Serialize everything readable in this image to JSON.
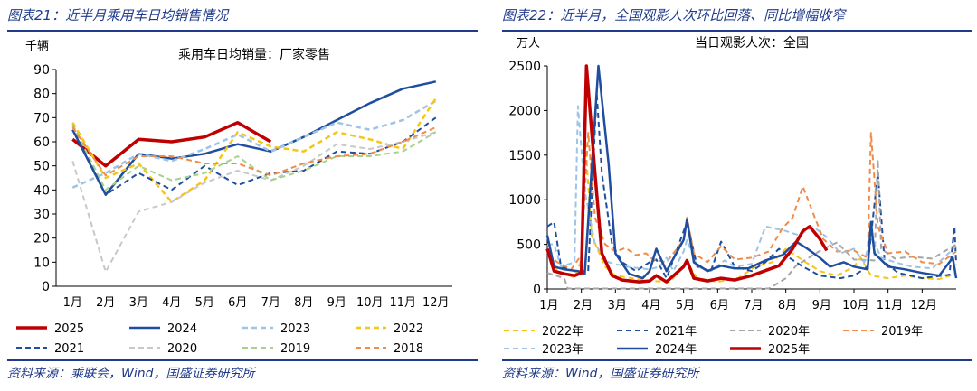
{
  "left": {
    "header": "图表21：近半月乘用车日均销售情况",
    "source": "资料来源：乘联会，Wind，国盛证券研究所",
    "chart_data": {
      "type": "line",
      "title": "乘用车日均销量：厂家零售",
      "unit_label": "千辆",
      "categories": [
        "1月",
        "2月",
        "3月",
        "4月",
        "5月",
        "6月",
        "7月",
        "8月",
        "9月",
        "10月",
        "11月",
        "12月"
      ],
      "ylim": [
        0,
        90
      ],
      "yticks": [
        0,
        10,
        20,
        30,
        40,
        50,
        60,
        70,
        80,
        90
      ],
      "grid": false,
      "legend_position": "bottom",
      "series": [
        {
          "name": "2025",
          "color": "#c00000",
          "dash": "solid",
          "width": 3.5,
          "values": [
            61,
            50,
            61,
            60,
            62,
            68,
            60,
            null,
            null,
            null,
            null,
            null
          ]
        },
        {
          "name": "2024",
          "color": "#1f4e9e",
          "dash": "solid",
          "width": 2.5,
          "values": [
            65,
            38,
            55,
            53,
            55,
            59,
            56,
            62,
            69,
            76,
            82,
            85
          ]
        },
        {
          "name": "2023",
          "color": "#9dc3e6",
          "dash": "dashed",
          "width": 2.5,
          "values": [
            41,
            47,
            55,
            52,
            57,
            63,
            56,
            62,
            68,
            65,
            69,
            77
          ]
        },
        {
          "name": "2022",
          "color": "#f5c518",
          "dash": "dashed",
          "width": 2.5,
          "values": [
            68,
            45,
            51,
            35,
            44,
            64,
            58,
            56,
            64,
            61,
            57,
            78
          ]
        },
        {
          "name": "2021",
          "color": "#1f4e9e",
          "dash": "dashed",
          "width": 2,
          "values": [
            67,
            38,
            47,
            40,
            50,
            42,
            47,
            48,
            56,
            55,
            60,
            70
          ]
        },
        {
          "name": "2020",
          "color": "#c8c8c8",
          "dash": "dashed",
          "width": 2,
          "values": [
            52,
            6,
            31,
            35,
            43,
            48,
            44,
            50,
            59,
            57,
            60,
            64
          ]
        },
        {
          "name": "2019",
          "color": "#a9d18e",
          "dash": "dashed",
          "width": 2,
          "values": [
            67,
            40,
            50,
            44,
            47,
            54,
            44,
            48,
            54,
            54,
            56,
            64
          ]
        },
        {
          "name": "2018",
          "color": "#f08c4a",
          "dash": "dashed",
          "width": 2,
          "values": [
            66,
            46,
            54,
            54,
            51,
            51,
            46,
            51,
            54,
            55,
            60,
            66
          ]
        }
      ]
    }
  },
  "right": {
    "header": "图表22：近半月，全国观影人次环比回落、同比增幅收窄",
    "source": "资料来源：Wind，国盛证券研究所",
    "chart_data": {
      "type": "line",
      "title": "当日观影人次：全国",
      "unit_label": "万人",
      "categories": [
        "1月",
        "2月",
        "3月",
        "4月",
        "5月",
        "6月",
        "7月",
        "8月",
        "9月",
        "10月",
        "11月",
        "12月"
      ],
      "ylim": [
        0,
        2500
      ],
      "yticks": [
        0,
        500,
        1000,
        1500,
        2000,
        2500
      ],
      "grid": false,
      "legend_position": "bottom",
      "series": [
        {
          "name": "2022年",
          "color": "#f5c518",
          "dash": "dashed",
          "width": 2,
          "points": [
            [
              0,
              450
            ],
            [
              0.3,
              200
            ],
            [
              0.8,
              130
            ],
            [
              1.0,
              320
            ],
            [
              1.1,
              1750
            ],
            [
              1.3,
              600
            ],
            [
              1.7,
              250
            ],
            [
              2.0,
              150
            ],
            [
              3.0,
              90
            ],
            [
              3.6,
              80
            ],
            [
              4.1,
              300
            ],
            [
              4.4,
              120
            ],
            [
              5.0,
              80
            ],
            [
              5.6,
              120
            ],
            [
              6.1,
              250
            ],
            [
              6.6,
              300
            ],
            [
              7.0,
              450
            ],
            [
              7.5,
              320
            ],
            [
              8.0,
              200
            ],
            [
              8.5,
              150
            ],
            [
              9.0,
              250
            ],
            [
              9.2,
              350
            ],
            [
              9.5,
              150
            ],
            [
              10.0,
              120
            ],
            [
              10.5,
              150
            ],
            [
              11.0,
              120
            ],
            [
              11.5,
              110
            ],
            [
              12.0,
              170
            ]
          ]
        },
        {
          "name": "2021年",
          "color": "#1f4e9e",
          "dash": "dashed",
          "width": 2,
          "points": [
            [
              0,
              700
            ],
            [
              0.2,
              750
            ],
            [
              0.4,
              250
            ],
            [
              0.8,
              200
            ],
            [
              1.2,
              200
            ],
            [
              1.45,
              2200
            ],
            [
              1.6,
              1300
            ],
            [
              1.9,
              500
            ],
            [
              2.2,
              300
            ],
            [
              2.6,
              200
            ],
            [
              3.0,
              300
            ],
            [
              3.2,
              330
            ],
            [
              3.5,
              120
            ],
            [
              4.1,
              750
            ],
            [
              4.4,
              250
            ],
            [
              4.8,
              200
            ],
            [
              5.1,
              530
            ],
            [
              5.5,
              250
            ],
            [
              6.0,
              200
            ],
            [
              6.4,
              300
            ],
            [
              6.8,
              450
            ],
            [
              7.1,
              350
            ],
            [
              7.5,
              250
            ],
            [
              8.0,
              150
            ],
            [
              8.6,
              120
            ],
            [
              9.0,
              150
            ],
            [
              9.4,
              250
            ],
            [
              9.7,
              1300
            ],
            [
              9.9,
              300
            ],
            [
              10.3,
              180
            ],
            [
              11.0,
              120
            ],
            [
              11.8,
              160
            ],
            [
              11.95,
              700
            ],
            [
              12.0,
              280
            ]
          ]
        },
        {
          "name": "2020年",
          "color": "#a6a6a6",
          "dash": "dashed",
          "width": 2,
          "points": [
            [
              0,
              180
            ],
            [
              0.5,
              120
            ],
            [
              0.6,
              5
            ],
            [
              6.5,
              5
            ],
            [
              6.7,
              50
            ],
            [
              7.0,
              120
            ],
            [
              7.3,
              260
            ],
            [
              7.8,
              380
            ],
            [
              8.1,
              450
            ],
            [
              8.5,
              520
            ],
            [
              9.0,
              330
            ],
            [
              9.6,
              320
            ],
            [
              9.7,
              1450
            ],
            [
              9.8,
              450
            ],
            [
              10.2,
              340
            ],
            [
              10.7,
              360
            ],
            [
              11.3,
              340
            ],
            [
              12.0,
              500
            ]
          ]
        },
        {
          "name": "2019年",
          "color": "#f08c4a",
          "dash": "dashed",
          "width": 2,
          "points": [
            [
              0,
              380
            ],
            [
              0.3,
              300
            ],
            [
              0.7,
              220
            ],
            [
              1.0,
              380
            ],
            [
              1.2,
              1750
            ],
            [
              1.4,
              800
            ],
            [
              1.7,
              500
            ],
            [
              2.0,
              420
            ],
            [
              2.3,
              460
            ],
            [
              2.6,
              380
            ],
            [
              2.9,
              400
            ],
            [
              3.1,
              330
            ],
            [
              3.5,
              300
            ],
            [
              4.0,
              550
            ],
            [
              4.1,
              800
            ],
            [
              4.3,
              400
            ],
            [
              4.7,
              300
            ],
            [
              5.1,
              480
            ],
            [
              5.5,
              330
            ],
            [
              6.0,
              350
            ],
            [
              6.5,
              420
            ],
            [
              6.9,
              680
            ],
            [
              7.2,
              800
            ],
            [
              7.5,
              1150
            ],
            [
              7.8,
              850
            ],
            [
              8.1,
              560
            ],
            [
              8.5,
              420
            ],
            [
              9.0,
              430
            ],
            [
              9.4,
              350
            ],
            [
              9.5,
              1750
            ],
            [
              9.7,
              700
            ],
            [
              10.0,
              400
            ],
            [
              10.5,
              420
            ],
            [
              11.0,
              300
            ],
            [
              11.5,
              280
            ],
            [
              12.0,
              420
            ]
          ]
        },
        {
          "name": "2023年",
          "color": "#9dc3e6",
          "dash": "dashed",
          "width": 2,
          "points": [
            [
              0,
              500
            ],
            [
              0.2,
              500
            ],
            [
              0.4,
              250
            ],
            [
              0.8,
              300
            ],
            [
              0.9,
              2050
            ],
            [
              1.1,
              1100
            ],
            [
              1.4,
              500
            ],
            [
              1.8,
              300
            ],
            [
              2.3,
              250
            ],
            [
              3.0,
              220
            ],
            [
              3.3,
              250
            ],
            [
              3.5,
              350
            ],
            [
              3.7,
              200
            ],
            [
              4.0,
              420
            ],
            [
              4.1,
              550
            ],
            [
              4.4,
              250
            ],
            [
              4.8,
              200
            ],
            [
              5.2,
              320
            ],
            [
              5.5,
              250
            ],
            [
              6.0,
              280
            ],
            [
              6.4,
              700
            ],
            [
              7.0,
              650
            ],
            [
              7.4,
              600
            ],
            [
              7.8,
              700
            ],
            [
              8.2,
              580
            ],
            [
              8.6,
              400
            ],
            [
              9.0,
              450
            ],
            [
              9.3,
              300
            ],
            [
              9.5,
              600
            ],
            [
              9.8,
              350
            ],
            [
              10.2,
              300
            ],
            [
              10.7,
              250
            ],
            [
              11.3,
              230
            ],
            [
              12.0,
              480
            ]
          ]
        },
        {
          "name": "2024年",
          "color": "#1f4e9e",
          "dash": "solid",
          "width": 2.5,
          "points": [
            [
              0,
              600
            ],
            [
              0.2,
              250
            ],
            [
              0.5,
              220
            ],
            [
              0.9,
              200
            ],
            [
              1.1,
              170
            ],
            [
              1.5,
              2500
            ],
            [
              1.8,
              1400
            ],
            [
              2.0,
              400
            ],
            [
              2.4,
              170
            ],
            [
              2.8,
              120
            ],
            [
              3.0,
              200
            ],
            [
              3.2,
              450
            ],
            [
              3.5,
              200
            ],
            [
              4.0,
              550
            ],
            [
              4.1,
              780
            ],
            [
              4.3,
              300
            ],
            [
              4.7,
              200
            ],
            [
              5.1,
              260
            ],
            [
              5.5,
              230
            ],
            [
              5.9,
              230
            ],
            [
              6.4,
              320
            ],
            [
              6.9,
              380
            ],
            [
              7.3,
              530
            ],
            [
              7.6,
              460
            ],
            [
              8.0,
              350
            ],
            [
              8.3,
              250
            ],
            [
              8.7,
              300
            ],
            [
              9.0,
              250
            ],
            [
              9.4,
              220
            ],
            [
              9.5,
              750
            ],
            [
              9.6,
              400
            ],
            [
              10.0,
              250
            ],
            [
              10.5,
              220
            ],
            [
              11.0,
              180
            ],
            [
              11.5,
              150
            ],
            [
              11.9,
              350
            ],
            [
              12.0,
              120
            ]
          ]
        },
        {
          "name": "2025年",
          "color": "#c00000",
          "dash": "solid",
          "width": 3.5,
          "points": [
            [
              0,
              450
            ],
            [
              0.2,
              200
            ],
            [
              0.5,
              170
            ],
            [
              0.8,
              150
            ],
            [
              1.0,
              180
            ],
            [
              1.15,
              2500
            ],
            [
              1.4,
              1300
            ],
            [
              1.6,
              400
            ],
            [
              1.9,
              150
            ],
            [
              2.2,
              100
            ],
            [
              2.7,
              80
            ],
            [
              3.0,
              90
            ],
            [
              3.2,
              150
            ],
            [
              3.5,
              80
            ],
            [
              4.0,
              250
            ],
            [
              4.1,
              320
            ],
            [
              4.3,
              120
            ],
            [
              4.7,
              90
            ],
            [
              5.1,
              120
            ],
            [
              5.5,
              100
            ],
            [
              6.0,
              150
            ],
            [
              6.5,
              220
            ],
            [
              6.8,
              260
            ],
            [
              7.2,
              450
            ],
            [
              7.5,
              650
            ],
            [
              7.7,
              700
            ],
            [
              8.0,
              560
            ],
            [
              8.2,
              430
            ]
          ]
        }
      ]
    }
  }
}
